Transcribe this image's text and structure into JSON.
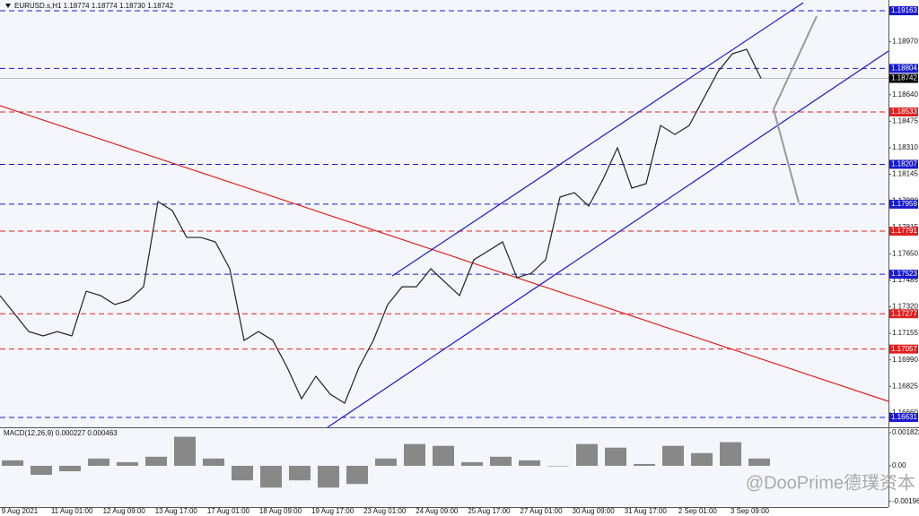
{
  "chart_data": {
    "type": "line",
    "title": "EURUSD.s,H1  1.18774 1.18774 1.18730 1.18742",
    "series": [
      {
        "name": "EURUSD.s",
        "color": "#222222",
        "values": [
          1.1739,
          1.17278,
          1.17166,
          1.17139,
          1.17166,
          1.17139,
          1.17417,
          1.1739,
          1.17334,
          1.17362,
          1.17445,
          1.17975,
          1.17919,
          1.17752,
          1.17752,
          1.17724,
          1.17557,
          1.17111,
          1.17166,
          1.17111,
          1.16943,
          1.16748,
          1.16888,
          1.16776,
          1.1672,
          1.16943,
          1.17111,
          1.17334,
          1.17445,
          1.17445,
          1.17557,
          1.17473,
          1.1739,
          1.17613,
          1.17668,
          1.17724,
          1.17501,
          1.17529,
          1.17613,
          1.18003,
          1.18031,
          1.17947,
          1.18115,
          1.1831,
          1.18059,
          1.18087,
          1.18449,
          1.18393,
          1.18449,
          1.18617,
          1.18784,
          1.18895,
          1.18923,
          1.18742
        ]
      }
    ],
    "ylim": [
      1.1657,
      1.1923
    ],
    "yticks": [
      {
        "value": 1.1897,
        "label": "1.18970"
      },
      {
        "value": 1.1864,
        "label": "1.18640"
      },
      1.18475,
      {
        "value": 1.1831,
        "label": "1.18310"
      },
      1.18145,
      {
        "value": 1.1798,
        "label": "1.17980"
      },
      1.17815,
      {
        "value": 1.1765,
        "label": "1.17650"
      },
      1.17485,
      {
        "value": 1.1732,
        "label": "1.17320"
      },
      1.17155,
      {
        "value": 1.1699,
        "label": "1.16990"
      },
      1.16825,
      {
        "value": 1.1666,
        "label": "1.16660"
      }
    ],
    "levels": [
      1.19163,
      1.18804,
      1.18533,
      1.18207,
      1.17959,
      1.17791,
      1.17523,
      1.17277,
      1.17057,
      1.16631
    ],
    "level_colors": [
      "#1a1ad0",
      "#1a1ad0",
      "#e02020",
      "#1a1ad0",
      "#1a1ad0",
      "#e02020",
      "#1a1ad0",
      "#e02020",
      "#e02020",
      "#1a1ad0"
    ],
    "current_price": 1.18742,
    "x_labels": [
      "9 Aug 2021",
      "11 Aug 01:00",
      "12 Aug 09:00",
      "13 Aug 17:00",
      "17 Aug 01:00",
      "18 Aug 09:00",
      "19 Aug 17:00",
      "23 Aug 01:00",
      "24 Aug 09:00",
      "25 Aug 17:00",
      "27 Aug 01:00",
      "30 Aug 09:00",
      "31 Aug 17:00",
      "2 Sep 01:00",
      "3 Sep 09:00"
    ],
    "macd": {
      "title": "MACD(12,26,9) 0.000227 0.000463",
      "color": "#888888",
      "values": [
        0.0003,
        -0.0005,
        -0.0003,
        0.0004,
        0.0002,
        0.0005,
        0.0016,
        0.0004,
        -0.0008,
        -0.0012,
        -0.0008,
        -0.0012,
        -0.001,
        0.0004,
        0.0012,
        0.0011,
        0.0002,
        0.0005,
        0.0003,
        0.0,
        0.0012,
        0.001,
        0.0001,
        0.0011,
        0.0007,
        0.0013,
        0.0004
      ],
      "ylim": [
        -0.00227,
        0.00207
      ],
      "yticks": [
        0.001822,
        {
          "value": 0,
          "label": "0.00"
        },
        -0.00196
      ]
    },
    "watermark": "@DooPrime德璞资本"
  }
}
